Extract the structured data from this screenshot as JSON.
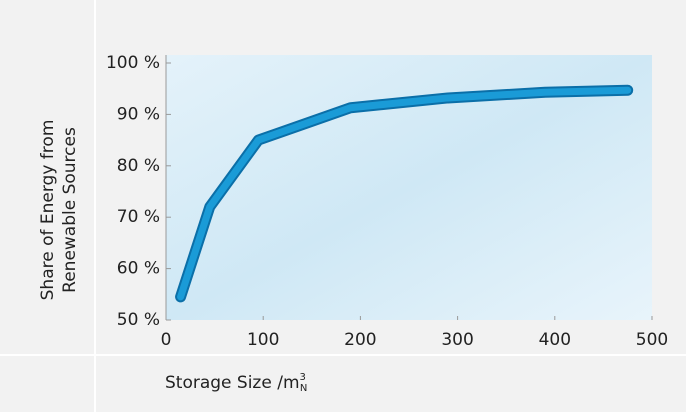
{
  "chart_data": {
    "type": "line",
    "ylabel": [
      "Share of Energy from",
      "Renewable Sources"
    ],
    "xlabel": {
      "text": "Storage Size /m",
      "sup": "3",
      "sub": "N"
    },
    "x": [
      15,
      45,
      95,
      190,
      290,
      390,
      475
    ],
    "series": [
      {
        "color": "#1a9bd7",
        "values": [
          54.5,
          72,
          85,
          91.3,
          93.2,
          94.3,
          94.7
        ]
      }
    ],
    "xlim": [
      0,
      500
    ],
    "xticks": [
      0,
      100,
      200,
      300,
      400,
      500
    ],
    "ylim": [
      50,
      100
    ],
    "yticks": [
      {
        "value": 50,
        "label": "50 %"
      },
      {
        "value": 60,
        "label": "60 %"
      },
      {
        "value": 70,
        "label": "70 %"
      },
      {
        "value": 80,
        "label": "80 %"
      },
      {
        "value": 90,
        "label": "90 %"
      },
      {
        "value": 100,
        "label": "100 %"
      }
    ]
  }
}
